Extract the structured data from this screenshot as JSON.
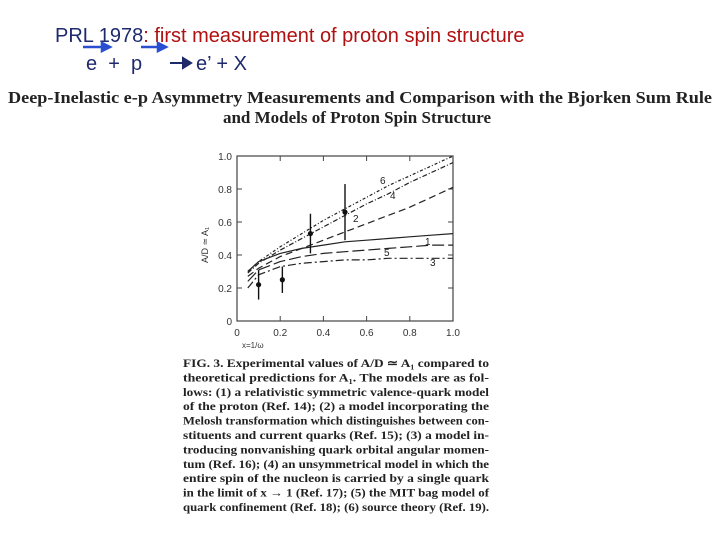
{
  "slide": {
    "title_prefix": "PRL 1978",
    "title_rest": ": first measurement of proton spin structure",
    "reaction_left": "e  +  p",
    "reaction_right": "e’ + X"
  },
  "paper": {
    "title_line1": "Deep-Inelastic e-p Asymmetry Measurements and Comparison with the Bjorken Sum Rule",
    "title_line2": "and Models of Proton Spin Structure"
  },
  "chart_data": {
    "type": "line",
    "x_label": "x=1/ω",
    "y_label": "A/D ≃ A₁",
    "xlim": [
      0,
      1
    ],
    "ylim": [
      0,
      1
    ],
    "xticks": [
      0,
      0.2,
      0.4,
      0.6,
      0.8,
      {
        "value": 1,
        "label": "1.0"
      }
    ],
    "yticks": [
      0,
      0.2,
      0.4,
      0.6,
      0.8,
      {
        "value": 1,
        "label": "1.0"
      }
    ],
    "x": [
      0.05,
      0.1,
      0.2,
      0.3,
      0.4,
      0.5,
      0.6,
      0.7,
      0.8,
      0.9,
      1.0
    ],
    "series": [
      {
        "name": "1",
        "color": "#222222",
        "dash": "none",
        "values": [
          0.3,
          0.36,
          0.41,
          0.44,
          0.46,
          0.48,
          0.49,
          0.5,
          0.51,
          0.52,
          0.53
        ]
      },
      {
        "name": "2",
        "color": "#222222",
        "dash": "7 4",
        "values": [
          0.27,
          0.32,
          0.39,
          0.44,
          0.49,
          0.54,
          0.59,
          0.64,
          0.69,
          0.75,
          0.81
        ]
      },
      {
        "name": "3",
        "color": "#222222",
        "dash": "8 3 2 3",
        "values": [
          0.2,
          0.28,
          0.33,
          0.35,
          0.36,
          0.37,
          0.37,
          0.38,
          0.38,
          0.38,
          0.38
        ]
      },
      {
        "name": "4",
        "color": "#222222",
        "dash": "5 2 1 2",
        "values": [
          0.29,
          0.35,
          0.43,
          0.5,
          0.57,
          0.64,
          0.71,
          0.77,
          0.84,
          0.9,
          0.96
        ]
      },
      {
        "name": "5",
        "color": "#222222",
        "dash": "12 4",
        "values": [
          0.24,
          0.31,
          0.36,
          0.39,
          0.41,
          0.42,
          0.43,
          0.44,
          0.45,
          0.46,
          0.46
        ]
      },
      {
        "name": "6",
        "color": "#222222",
        "dash": "3 2 1 2",
        "values": [
          0.3,
          0.36,
          0.45,
          0.53,
          0.61,
          0.68,
          0.75,
          0.82,
          0.88,
          0.94,
          1.0
        ]
      }
    ],
    "points": {
      "x": [
        0.1,
        0.21,
        0.34,
        0.5
      ],
      "values": [
        0.22,
        0.25,
        0.53,
        0.66
      ],
      "errors": [
        0.09,
        0.08,
        0.12,
        0.17
      ]
    }
  },
  "caption": {
    "lines": [
      "FIG. 3.  Experimental values of A/D ≃ A₁ compared to",
      "theoretical predictions for A₁.  The models are as fol-",
      "lows: (1) a relativistic symmetric valence-quark model",
      "of the proton (Ref. 14); (2) a model incorporating the",
      "Melosh transformation which distinguishes between con-",
      "stituents and current quarks (Ref. 15); (3) a model in-",
      "troducing nonvanishing quark orbital angular momen-",
      "tum (Ref. 16); (4) an unsymmetrical model in which the",
      "entire spin of the nucleon is carried by a single quark",
      "in the limit of x → 1 (Ref. 17); (5) the MIT bag model of",
      "quark confinement (Ref. 18); (6) source theory (Ref. 19)."
    ]
  }
}
